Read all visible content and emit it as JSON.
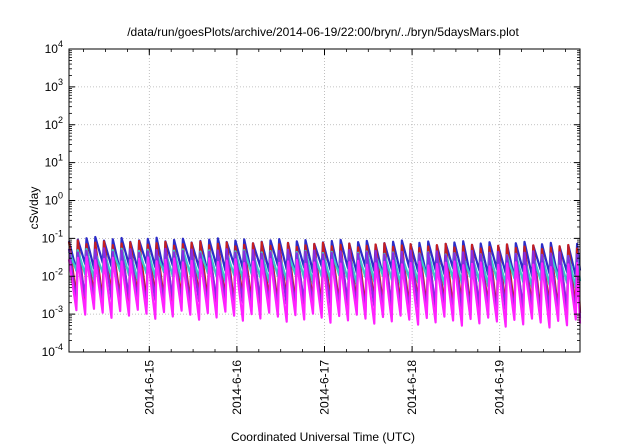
{
  "chart_data": {
    "type": "line",
    "title": "/data/run/goesPlots/archive/2014-06-19/22:00/bryn/../bryn/5daysMars.plot",
    "xlabel": "Coordinated Universal Time (UTC)",
    "ylabel": "cSv/day",
    "y_scale": "log",
    "ylim": [
      0.0001,
      10000
    ],
    "y_ticks": [
      {
        "value": 0.0001,
        "base": "10",
        "exp": "-4"
      },
      {
        "value": 0.001,
        "base": "10",
        "exp": "-3"
      },
      {
        "value": 0.01,
        "base": "10",
        "exp": "-2"
      },
      {
        "value": 0.1,
        "base": "10",
        "exp": "-1"
      },
      {
        "value": 1,
        "base": "10",
        "exp": "0"
      },
      {
        "value": 10,
        "base": "10",
        "exp": "1"
      },
      {
        "value": 100,
        "base": "10",
        "exp": "2"
      },
      {
        "value": 1000,
        "base": "10",
        "exp": "3"
      },
      {
        "value": 10000,
        "base": "10",
        "exp": "4"
      }
    ],
    "xlim": [
      "2014-06-14 02:00",
      "2014-06-19 22:00"
    ],
    "x_ticks": [
      "2014-6-15",
      "2014-6-16",
      "2014-6-17",
      "2014-6-18",
      "2014-6-19"
    ],
    "grid": true,
    "legend": "none",
    "cycles_per_day": 10,
    "series": [
      {
        "color": "#2c2cc8",
        "peaks": [
          0.1,
          0.07
        ],
        "troughs": [
          0.02,
          0.012
        ]
      },
      {
        "color": "#c81e1e",
        "peaks": [
          0.08,
          0.06
        ],
        "troughs": [
          0.003,
          0.0013
        ]
      },
      {
        "color": "#3cc8c8",
        "peaks": [
          0.05,
          0.035
        ],
        "troughs": [
          0.012,
          0.007
        ]
      },
      {
        "color": "#8a2be2",
        "peaks": [
          0.05,
          0.04
        ],
        "troughs": [
          0.0025,
          0.0011
        ]
      },
      {
        "color": "#ff22ff",
        "peaks": [
          0.03,
          0.02
        ],
        "troughs": [
          0.0012,
          0.0006
        ]
      }
    ]
  }
}
